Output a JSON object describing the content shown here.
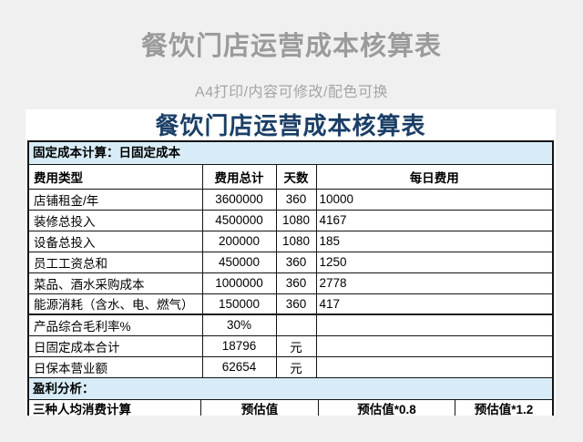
{
  "header": {
    "title": "餐饮门店运营成本核算表",
    "subtitle": "A4打印/内容可修改/配色可换"
  },
  "sheet": {
    "title": "餐饮门店运营成本核算表",
    "sections": {
      "fixed_cost_label": "固定成本计算：日固定成本",
      "profit_label": "盈利分析："
    },
    "columns": [
      "费用类型",
      "费用总计",
      "天数",
      "每日费用"
    ],
    "rows": [
      [
        "店铺租金/年",
        "3600000",
        "360",
        "10000"
      ],
      [
        "装修总投入",
        "4500000",
        "1080",
        "4167"
      ],
      [
        "设备总投入",
        "200000",
        "1080",
        "185"
      ],
      [
        "员工工资总和",
        "450000",
        "360",
        "1250"
      ],
      [
        "菜品、酒水采购成本",
        "1000000",
        "360",
        "2778"
      ],
      [
        "能源消耗（含水、电、燃气）",
        "150000",
        "360",
        "417"
      ],
      [
        "产品综合毛利率%",
        "30%",
        "",
        ""
      ],
      [
        "日固定成本合计",
        "18796",
        "元",
        ""
      ],
      [
        "日保本营业额",
        "62654",
        "元",
        ""
      ]
    ],
    "bottom_columns": [
      "三种人均消费计算",
      "预估值",
      "预估值*0.8",
      "预估值*1.2"
    ],
    "colors": {
      "page_bg": "#f0f0f0",
      "panel_bg": "#ffffff",
      "title_navy": "#1b3f66",
      "band_blue": "#d7ecf7",
      "muted_gray": "#9b9b9b",
      "border_black": "#141414"
    }
  }
}
